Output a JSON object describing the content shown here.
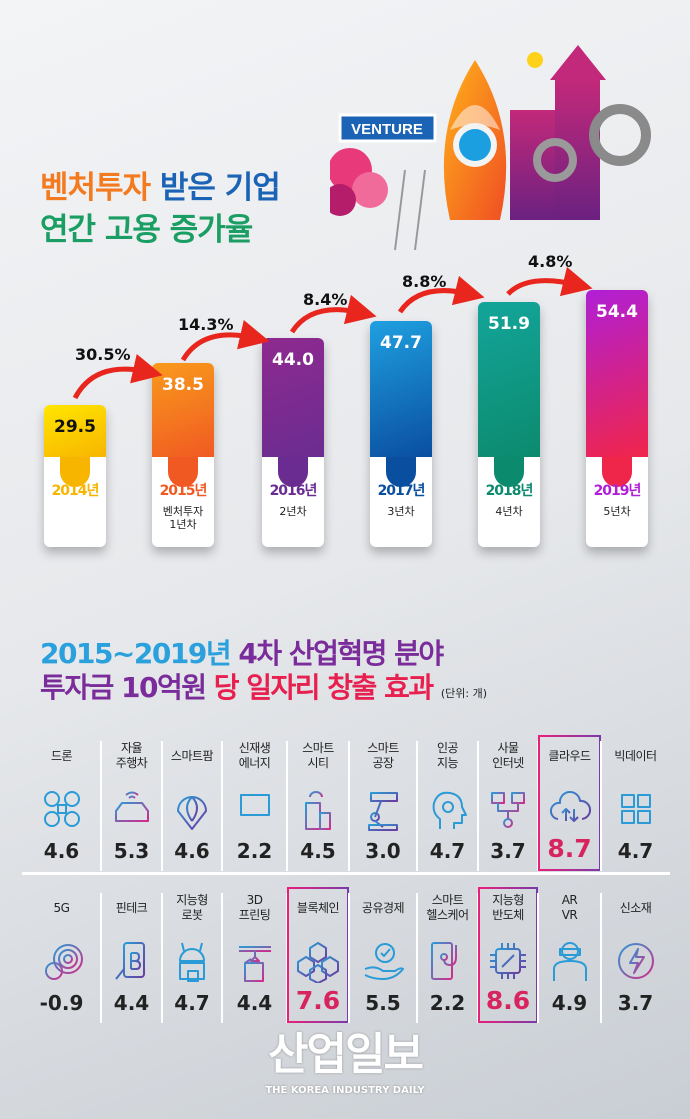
{
  "title": {
    "line1_a": "벤처투자",
    "line1_b": "받은 기업",
    "line2": "연간 고용 증가율"
  },
  "illustration": {
    "sign": "VENTURE"
  },
  "chart_data": {
    "type": "bar",
    "categories": [
      "2014년",
      "2015년",
      "2016년",
      "2017년",
      "2018년",
      "2019년"
    ],
    "sublabels": [
      "",
      "벤처투자\n1년차",
      "2년차",
      "3년차",
      "4년차",
      "5년차"
    ],
    "values": [
      29.5,
      38.5,
      44.0,
      47.7,
      51.9,
      54.4
    ],
    "value_labels": [
      "29.5",
      "38.5",
      "44.0",
      "47.7",
      "51.9",
      "54.4"
    ],
    "growth_labels": [
      "30.5%",
      "14.3%",
      "8.4%",
      "8.8%",
      "4.8%"
    ],
    "colors": [
      [
        "#ffe600",
        "#f7b500"
      ],
      [
        "#f99a1c",
        "#f05a22"
      ],
      [
        "#8e2a8f",
        "#6b2c91"
      ],
      [
        "#1fa0e0",
        "#0a4ea0"
      ],
      [
        "#13a59a",
        "#0c8a6e"
      ],
      [
        "#b01fd6",
        "#f0254a"
      ]
    ]
  },
  "section2": {
    "title_a": "2015~2019년",
    "title_b": "4차 산업혁명 분야",
    "title_c": "투자금 10억원",
    "title_d": "당 일자리 창출 효과",
    "unit": "(단위: 개)"
  },
  "items": [
    {
      "label": "드론",
      "value": "4.6",
      "icon": "drone-icon"
    },
    {
      "label": "자율\n주행차",
      "value": "5.3",
      "icon": "car-icon"
    },
    {
      "label": "스마트팜",
      "value": "4.6",
      "icon": "leaf-icon"
    },
    {
      "label": "신재생\n에너지",
      "value": "2.2",
      "icon": "solar-panel-icon"
    },
    {
      "label": "스마트\n시티",
      "value": "4.5",
      "icon": "city-icon"
    },
    {
      "label": "스마트\n공장",
      "value": "3.0",
      "icon": "robot-arm-icon"
    },
    {
      "label": "인공\n지능",
      "value": "4.7",
      "icon": "brain-head-icon"
    },
    {
      "label": "사물\n인터넷",
      "value": "3.7",
      "icon": "network-icon"
    },
    {
      "label": "클라우드",
      "value": "8.7",
      "icon": "cloud-icon",
      "highlight": true
    },
    {
      "label": "빅데이터",
      "value": "4.7",
      "icon": "calculator-icon"
    },
    {
      "label": "5G",
      "value": "-0.9",
      "icon": "fingerprint-icon"
    },
    {
      "label": "핀테크",
      "value": "4.4",
      "icon": "phone-bitcoin-icon"
    },
    {
      "label": "지능형\n로봇",
      "value": "4.7",
      "icon": "robot-icon"
    },
    {
      "label": "3D\n프린팅",
      "value": "4.4",
      "icon": "3d-printer-icon"
    },
    {
      "label": "블록체인",
      "value": "7.6",
      "icon": "blockchain-icon",
      "highlight": true
    },
    {
      "label": "공유경제",
      "value": "5.5",
      "icon": "hand-check-icon"
    },
    {
      "label": "스마트\n헬스케어",
      "value": "2.2",
      "icon": "stethoscope-icon"
    },
    {
      "label": "지능형\n반도체",
      "value": "8.6",
      "icon": "chip-icon",
      "highlight": true
    },
    {
      "label": "AR\nVR",
      "value": "4.9",
      "icon": "vr-person-icon"
    },
    {
      "label": "신소재",
      "value": "3.7",
      "icon": "lightning-icon"
    }
  ],
  "watermark": {
    "main": "산업일보",
    "sub": "THE KOREA INDUSTRY DAILY"
  }
}
